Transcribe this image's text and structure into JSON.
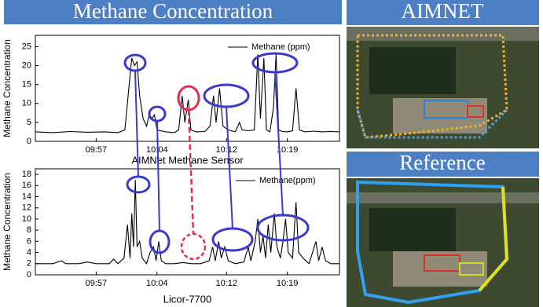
{
  "banner": "Methane Concentration",
  "maps": [
    {
      "title": "AIMNET"
    },
    {
      "title": "Reference"
    }
  ],
  "chart_data": [
    {
      "type": "line",
      "xlabel": "AIMNet Methane Sensor",
      "ylabel": "Methane Concentration",
      "xlim": [
        590,
        625
      ],
      "ylim": [
        0,
        28
      ],
      "xticks": [
        {
          "value": 597,
          "label": "09:57"
        },
        {
          "value": 604,
          "label": "10:04"
        },
        {
          "value": 612,
          "label": "10:12"
        },
        {
          "value": 619,
          "label": "10:19"
        }
      ],
      "yticks": [
        0,
        5,
        10,
        15,
        20,
        25
      ],
      "series": [
        {
          "name": "Methane (ppm)",
          "color": "#000000",
          "x": [
            590,
            592,
            594,
            596,
            598,
            599.5,
            600.3,
            600.8,
            601.1,
            601.4,
            601.7,
            602,
            602.4,
            602.8,
            603.1,
            603.4,
            603.7,
            604,
            605,
            606,
            606.5,
            606.9,
            607.2,
            607.6,
            607.9,
            608.5,
            609.5,
            610.1,
            610.5,
            610.8,
            611.2,
            611.6,
            612.2,
            613,
            613.5,
            613.8,
            614.5,
            615.2,
            615.6,
            615.9,
            616.3,
            616.6,
            617,
            617.4,
            617.7,
            618,
            618.4,
            619,
            619.6,
            620,
            620.4,
            621,
            622,
            623,
            624,
            625
          ],
          "values": [
            2.5,
            2.3,
            2.6,
            2.4,
            2.5,
            2.3,
            3,
            15,
            22,
            20,
            21,
            12,
            6,
            4,
            7,
            6,
            7,
            3,
            2.5,
            2.3,
            3,
            12,
            5,
            11,
            3,
            2.5,
            2.6,
            4,
            12,
            5,
            14,
            4,
            3,
            2.5,
            5,
            3,
            2.8,
            3,
            23,
            6,
            22,
            3,
            2.5,
            9,
            23,
            3,
            2.6,
            2.5,
            2.8,
            14,
            3,
            2.5,
            2.7,
            2.5,
            2.6,
            2.5
          ]
        }
      ]
    },
    {
      "type": "line",
      "xlabel": "Licor-7700",
      "ylabel": "Methane Concentration",
      "xlim": [
        590,
        625
      ],
      "ylim": [
        0,
        19
      ],
      "xticks": [
        {
          "value": 597,
          "label": "09:57"
        },
        {
          "value": 604,
          "label": "10:04"
        },
        {
          "value": 612,
          "label": "10:12"
        },
        {
          "value": 619,
          "label": "10:19"
        }
      ],
      "yticks": [
        0,
        2,
        4,
        6,
        8,
        10,
        12,
        14,
        16,
        18
      ],
      "series": [
        {
          "name": "Methane(ppm)",
          "color": "#000000",
          "x": [
            590,
            592,
            593,
            593.5,
            595,
            596,
            597,
            598.5,
            599,
            599.5,
            600.2,
            600.6,
            600.9,
            601.1,
            601.3,
            601.5,
            601.7,
            602,
            602.3,
            602.8,
            603.2,
            603.6,
            603.9,
            604.2,
            604.5,
            605,
            606,
            607,
            608,
            609,
            610,
            610.4,
            610.7,
            611.1,
            611.4,
            611.8,
            612.2,
            613,
            614,
            614.5,
            614.8,
            615.3,
            615.6,
            615.9,
            616.2,
            616.5,
            616.8,
            617.1,
            617.5,
            617.8,
            618.2,
            618.5,
            618.8,
            619.1,
            619.6,
            620,
            620.3,
            620.8,
            621.5,
            622.3,
            622.6,
            623,
            623.4,
            624,
            625
          ],
          "values": [
            2,
            2,
            2.5,
            2,
            2,
            2.3,
            2,
            2,
            2.8,
            2,
            3,
            9,
            3,
            11,
            5,
            17,
            5,
            6,
            3,
            2,
            4,
            5,
            2.5,
            6,
            2.5,
            2,
            2,
            2.2,
            2,
            2,
            2.5,
            5,
            2.5,
            6,
            3,
            5,
            2.5,
            2,
            2.3,
            5,
            2.5,
            6,
            10,
            4,
            7,
            3,
            9,
            4,
            11,
            5,
            3,
            6,
            10,
            4,
            3,
            13,
            4,
            3,
            2,
            6,
            2.5,
            5,
            2.5,
            2,
            2
          ]
        }
      ]
    }
  ]
}
